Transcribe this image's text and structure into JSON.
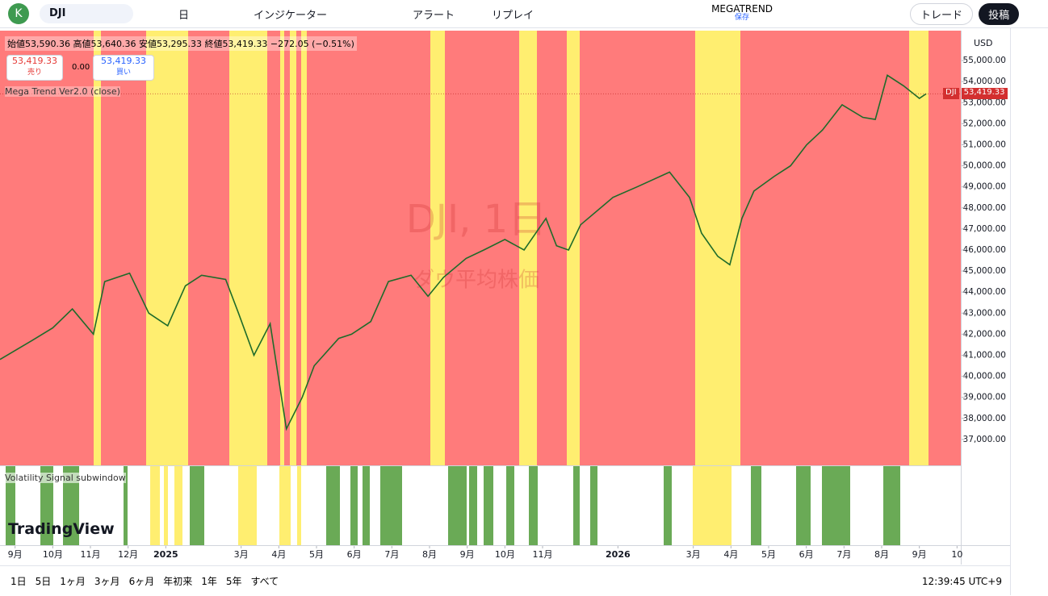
{
  "toolbar": {
    "avatar": "K",
    "symbol": "DJI",
    "interval": "日",
    "indicators": "インジケーター",
    "alert": "アラート",
    "replay": "リプレイ",
    "layout_name": "MEGATREND",
    "layout_state": "保存",
    "trade": "トレード",
    "publish": "投稿"
  },
  "legend": {
    "ohlc": "始値53,590.36 高値53,640.36 安値53,295.33 終値53,419.33 −272.05 (−0.51%)",
    "sell_price": "53,419.33",
    "sell": "売り",
    "spread": "0.00",
    "buy_price": "53,419.33",
    "buy": "買い",
    "indicator": "Mega Trend Ver2.0 (close)",
    "subwindow": "Volatility Signal subwindow"
  },
  "watermark": {
    "symbol": "DJI, 1日",
    "name": "ダウ平均株価"
  },
  "price_scale": {
    "currency": "USD",
    "tag_symbol": "DJI",
    "tag_price": "53,419.33"
  },
  "logo": "TradingView",
  "chart_data": {
    "type": "line",
    "grid": false,
    "x": [
      -0.4,
      0.45,
      1.0,
      1.52,
      2.08,
      2.38,
      3.04,
      3.55,
      4.05,
      4.52,
      4.95,
      5.59,
      5.93,
      6.34,
      6.77,
      7.2,
      7.62,
      7.94,
      8.59,
      8.93,
      9.44,
      9.91,
      10.51,
      10.96,
      11.37,
      11.97,
      12.44,
      13.0,
      13.51,
      14.09,
      14.37,
      14.69,
      15.01,
      15.87,
      16.51,
      17.37,
      17.9,
      18.22,
      18.65,
      18.97,
      19.29,
      19.61,
      20.15,
      20.58,
      21.01,
      21.43,
      21.95,
      22.5,
      22.83,
      23.15,
      23.58,
      24.0,
      24.18
    ],
    "series": [
      {
        "name": "DJI",
        "color": "#1e6b2a",
        "values": [
          40800,
          41700,
          42300,
          43200,
          42000,
          44500,
          44900,
          43000,
          42400,
          44300,
          44800,
          44600,
          43000,
          41000,
          42500,
          37500,
          39000,
          40500,
          41800,
          42000,
          42600,
          44500,
          44800,
          43800,
          44700,
          45600,
          46000,
          46500,
          46000,
          47500,
          46200,
          46000,
          47200,
          48500,
          49000,
          49700,
          48500,
          46800,
          45700,
          45300,
          47500,
          48800,
          49500,
          50000,
          51000,
          51700,
          52900,
          52300,
          52200,
          54300,
          53800,
          53200,
          53419.33
        ]
      }
    ],
    "xlim": [
      -0.4,
      25.1
    ],
    "xticks": [
      {
        "value": 0,
        "label": "9月"
      },
      {
        "value": 1,
        "label": "10月"
      },
      {
        "value": 2,
        "label": "11月"
      },
      {
        "value": 3,
        "label": "12月"
      },
      {
        "value": 4,
        "label": "2025"
      },
      {
        "value": 6,
        "label": "3月"
      },
      {
        "value": 7,
        "label": "4月"
      },
      {
        "value": 8,
        "label": "5月"
      },
      {
        "value": 9,
        "label": "6月"
      },
      {
        "value": 10,
        "label": "7月"
      },
      {
        "value": 11,
        "label": "8月"
      },
      {
        "value": 12,
        "label": "9月"
      },
      {
        "value": 13,
        "label": "10月"
      },
      {
        "value": 14,
        "label": "11月"
      },
      {
        "value": 16,
        "label": "2026"
      },
      {
        "value": 18,
        "label": "3月"
      },
      {
        "value": 19,
        "label": "4月"
      },
      {
        "value": 20,
        "label": "5月"
      },
      {
        "value": 21,
        "label": "6月"
      },
      {
        "value": 22,
        "label": "7月"
      },
      {
        "value": 23,
        "label": "8月"
      },
      {
        "value": 24,
        "label": "9月"
      },
      {
        "value": 25,
        "label": "10"
      }
    ],
    "ylim": [
      35770,
      56420
    ],
    "yticks": [
      {
        "value": 37000,
        "label": "37,000.00"
      },
      {
        "value": 38000,
        "label": "38,000.00"
      },
      {
        "value": 39000,
        "label": "39,000.00"
      },
      {
        "value": 40000,
        "label": "40,000.00"
      },
      {
        "value": 41000,
        "label": "41,000.00"
      },
      {
        "value": 42000,
        "label": "42,000.00"
      },
      {
        "value": 43000,
        "label": "43,000.00"
      },
      {
        "value": 44000,
        "label": "44,000.00"
      },
      {
        "value": 45000,
        "label": "45,000.00"
      },
      {
        "value": 46000,
        "label": "46,000.00"
      },
      {
        "value": 47000,
        "label": "47,000.00"
      },
      {
        "value": 48000,
        "label": "48,000.00"
      },
      {
        "value": 49000,
        "label": "49,000.00"
      },
      {
        "value": 50000,
        "label": "50,000.00"
      },
      {
        "value": 51000,
        "label": "51,000.00"
      },
      {
        "value": 52000,
        "label": "52,000.00"
      },
      {
        "value": 53000,
        "label": "53,000.00"
      },
      {
        "value": 54000,
        "label": "54,000.00"
      },
      {
        "value": 55000,
        "label": "55,000.00"
      }
    ]
  },
  "time_ranges": [
    "1日",
    "5日",
    "1ヶ月",
    "3ヶ月",
    "6ヶ月",
    "年初来",
    "1年",
    "5年",
    "すべて"
  ],
  "clock": "12:39:45 UTC+9"
}
